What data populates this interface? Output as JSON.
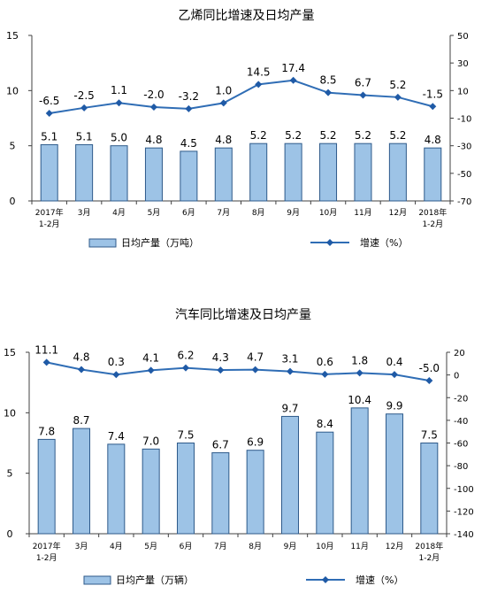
{
  "chart_data": [
    {
      "type": "bar+line",
      "title": "乙烯同比增速及日均产量",
      "categories": [
        "2017年\n1-2月",
        "3月",
        "4月",
        "5月",
        "6月",
        "7月",
        "8月",
        "9月",
        "10月",
        "11月",
        "12月",
        "2018年\n1-2月"
      ],
      "series": [
        {
          "name": "日均产量（万吨）",
          "type": "bar",
          "axis": "left",
          "values": [
            5.1,
            5.1,
            5.0,
            4.8,
            4.5,
            4.8,
            5.2,
            5.2,
            5.2,
            5.2,
            5.2,
            4.8
          ]
        },
        {
          "name": "增速（%）",
          "type": "line",
          "axis": "right",
          "values": [
            -6.5,
            -2.5,
            1.1,
            -2.0,
            -3.2,
            1.0,
            14.5,
            17.4,
            8.5,
            6.7,
            5.2,
            -1.5
          ]
        }
      ],
      "bar_labels": [
        "5.1",
        "5.1",
        "5.0",
        "4.8",
        "4.5",
        "4.8",
        "5.2",
        "5.2",
        "5.2",
        "5.2",
        "5.2",
        "4.8"
      ],
      "line_labels": [
        "-6.5",
        "-2.5",
        "1.1",
        "-2.0",
        "-3.2",
        "1.0",
        "14.5",
        "17.4",
        "8.5",
        "6.7",
        "5.2",
        "-1.5"
      ],
      "ylim_left": [
        0,
        15
      ],
      "yticks_left": [
        0,
        5,
        10,
        15
      ],
      "ylim_right": [
        -70,
        50
      ],
      "yticks_right": [
        -70,
        -50,
        -30,
        -10,
        10,
        30,
        50
      ],
      "legend": [
        "日均产量（万吨）",
        "增速（%）"
      ],
      "legend_placement": "bottom",
      "grid": false
    },
    {
      "type": "bar+line",
      "title": "汽车同比增速及日均产量",
      "categories": [
        "2017年\n1-2月",
        "3月",
        "4月",
        "5月",
        "6月",
        "7月",
        "8月",
        "9月",
        "10月",
        "11月",
        "12月",
        "2018年\n1-2月"
      ],
      "series": [
        {
          "name": "日均产量（万辆）",
          "type": "bar",
          "axis": "left",
          "values": [
            7.8,
            8.7,
            7.4,
            7.0,
            7.5,
            6.7,
            6.9,
            9.7,
            8.4,
            10.4,
            9.9,
            7.5
          ]
        },
        {
          "name": "增速（%）",
          "type": "line",
          "axis": "right",
          "values": [
            11.1,
            4.8,
            0.3,
            4.1,
            6.2,
            4.3,
            4.7,
            3.1,
            0.6,
            1.8,
            0.4,
            -5.0
          ]
        }
      ],
      "bar_labels": [
        "7.8",
        "8.7",
        "7.4",
        "7.0",
        "7.5",
        "6.7",
        "6.9",
        "9.7",
        "8.4",
        "10.4",
        "9.9",
        "7.5"
      ],
      "line_labels": [
        "11.1",
        "4.8",
        "0.3",
        "4.1",
        "6.2",
        "4.3",
        "4.7",
        "3.1",
        "0.6",
        "1.8",
        "0.4",
        "-5.0"
      ],
      "ylim_left": [
        0,
        15
      ],
      "yticks_left": [
        0,
        5,
        10,
        15
      ],
      "ylim_right": [
        -140,
        20
      ],
      "yticks_right": [
        -140,
        -120,
        -100,
        -80,
        -60,
        -40,
        -20,
        0,
        20
      ],
      "legend": [
        "日均产量（万辆）",
        "增速（%）"
      ],
      "legend_placement": "bottom",
      "grid": false
    }
  ],
  "colors": {
    "bar_fill": "#9dc3e6",
    "bar_stroke": "#2e5a8a",
    "line": "#2f6db5",
    "marker": "#1f5aa6",
    "axis": "#404040",
    "text": "#000000"
  }
}
